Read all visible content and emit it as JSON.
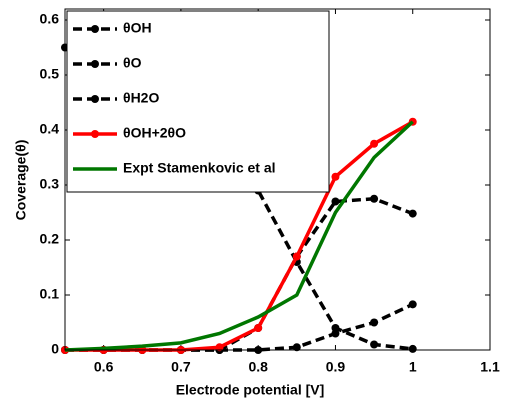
{
  "chart_data": {
    "type": "line",
    "xlabel": "Electrode potential [V]",
    "ylabel": "Coverage(θ)",
    "x": [
      0.55,
      0.6,
      0.65,
      0.7,
      0.75,
      0.8,
      0.85,
      0.9,
      0.95,
      1.0
    ],
    "series": [
      {
        "name": "θOH",
        "color": "#000000",
        "dash": true,
        "markers": true,
        "values": [
          0,
          0,
          0,
          0,
          0,
          0.04,
          0.17,
          0.27,
          0.275,
          0.248
        ]
      },
      {
        "name": "θO",
        "color": "#000000",
        "dash": true,
        "markers": true,
        "values": [
          0,
          0,
          0,
          0,
          0,
          0,
          0.005,
          0.03,
          0.05,
          0.083
        ]
      },
      {
        "name": "θH2O",
        "color": "#000000",
        "dash": true,
        "markers": true,
        "values": [
          0.55,
          0.53,
          0.5,
          0.47,
          0.4,
          0.29,
          0.16,
          0.04,
          0.01,
          0.002
        ]
      },
      {
        "name": "θOH+2θO",
        "color": "#ff0000",
        "dash": false,
        "markers": true,
        "values": [
          0,
          0,
          0,
          0,
          0.005,
          0.04,
          0.17,
          0.315,
          0.375,
          0.415
        ]
      },
      {
        "name": "Expt Stamenkovic et al",
        "color": "#007700",
        "dash": false,
        "markers": false,
        "values": [
          0,
          0.003,
          0.007,
          0.013,
          0.03,
          0.06,
          0.1,
          0.25,
          0.35,
          0.415
        ]
      }
    ],
    "xlim": [
      0.55,
      1.1
    ],
    "ylim": [
      0,
      0.62
    ],
    "xticks": [
      0.6,
      0.7,
      0.8,
      0.9,
      1,
      1.1
    ],
    "yticks": [
      0,
      0.1,
      0.2,
      0.3,
      0.4,
      0.5,
      0.6
    ],
    "legend": "upper left"
  }
}
